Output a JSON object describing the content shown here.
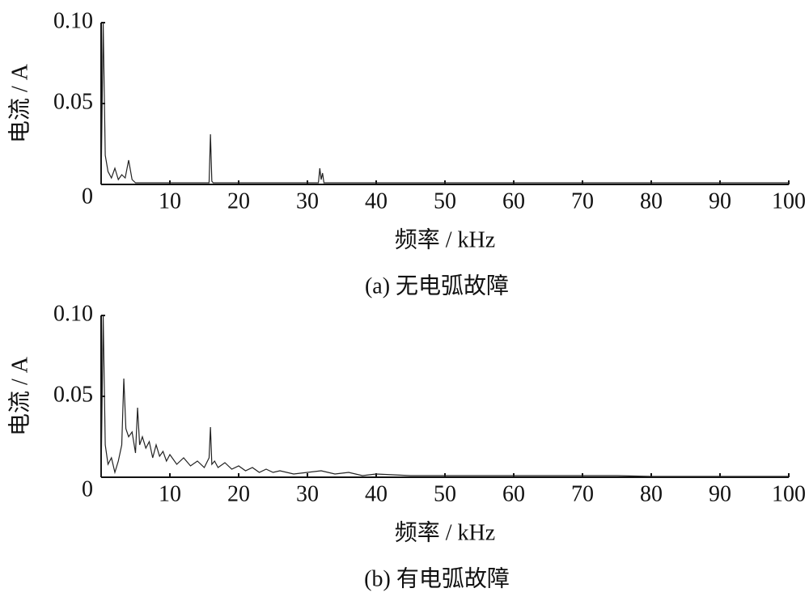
{
  "chart_data": [
    {
      "type": "line",
      "caption": "(a)  无电弧故障",
      "xlabel": "频率 / kHz",
      "ylabel": "电流 / A",
      "xlim": [
        0,
        100
      ],
      "ylim": [
        0,
        0.1
      ],
      "xticks": [
        10,
        20,
        30,
        40,
        50,
        60,
        70,
        80,
        90,
        100
      ],
      "yticks": [
        0,
        0.05,
        {
          "value": 0.1,
          "label": "0.10"
        }
      ],
      "color": "#222222",
      "x": [
        0,
        0.3,
        0.6,
        1,
        1.5,
        2,
        2.5,
        3,
        3.5,
        4,
        4.5,
        5,
        15.7,
        15.9,
        16.1,
        16.3,
        31.6,
        31.8,
        32,
        32.2,
        32.4,
        100
      ],
      "values": [
        0,
        0.1,
        0.018,
        0.008,
        0.004,
        0.01,
        0.003,
        0.006,
        0.004,
        0.015,
        0.003,
        0.001,
        0.001,
        0.031,
        0.002,
        0.001,
        0.001,
        0.01,
        0.003,
        0.007,
        0.001,
        0.001
      ]
    },
    {
      "type": "line",
      "caption": "(b)  有电弧故障",
      "xlabel": "频率 / kHz",
      "ylabel": "电流 / A",
      "xlim": [
        0,
        100
      ],
      "ylim": [
        0,
        0.1
      ],
      "xticks": [
        10,
        20,
        30,
        40,
        50,
        60,
        70,
        80,
        90,
        100
      ],
      "yticks": [
        0,
        0.05,
        {
          "value": 0.1,
          "label": "0.10"
        }
      ],
      "color": "#222222",
      "x": [
        0,
        0.3,
        0.6,
        1,
        1.5,
        2,
        2.5,
        3,
        3.3,
        3.6,
        4,
        4.5,
        5,
        5.3,
        5.6,
        6,
        6.5,
        7,
        7.5,
        8,
        8.5,
        9,
        9.5,
        10,
        11,
        12,
        13,
        14,
        15,
        15.7,
        15.9,
        16.1,
        16.5,
        17,
        18,
        19,
        20,
        21,
        22,
        23,
        24,
        25,
        26,
        28,
        30,
        32,
        34,
        36,
        38,
        40,
        45,
        50,
        55,
        60,
        65,
        70,
        75,
        80,
        90,
        100
      ],
      "values": [
        0,
        0.1,
        0.02,
        0.008,
        0.012,
        0.003,
        0.01,
        0.02,
        0.061,
        0.03,
        0.025,
        0.028,
        0.015,
        0.043,
        0.02,
        0.025,
        0.018,
        0.022,
        0.012,
        0.02,
        0.013,
        0.016,
        0.01,
        0.014,
        0.008,
        0.012,
        0.007,
        0.01,
        0.006,
        0.012,
        0.031,
        0.008,
        0.01,
        0.006,
        0.009,
        0.005,
        0.007,
        0.004,
        0.006,
        0.003,
        0.005,
        0.003,
        0.004,
        0.002,
        0.003,
        0.004,
        0.002,
        0.003,
        0.001,
        0.002,
        0.001,
        0.001,
        0.001,
        0.001,
        0.001,
        0.001,
        0.001,
        0.0005,
        0.0005,
        0.0005
      ]
    }
  ]
}
